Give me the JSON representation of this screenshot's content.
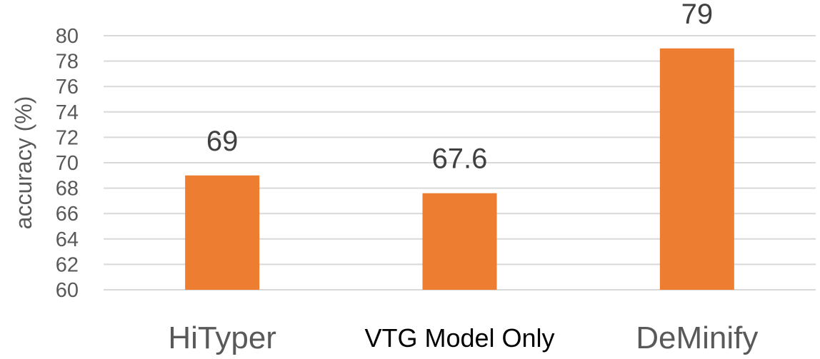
{
  "chart_data": {
    "type": "bar",
    "categories": [
      "HiTyper",
      "VTG Model Only",
      "DeMinify"
    ],
    "values": [
      69,
      67.6,
      79
    ],
    "data_labels": [
      "69",
      "67.6",
      "79"
    ],
    "ylabel": "accuracy (%)",
    "xlabel": "",
    "ylim": [
      60,
      80
    ],
    "yticks": [
      "60",
      "62",
      "64",
      "66",
      "68",
      "70",
      "72",
      "74",
      "76",
      "78",
      "80"
    ],
    "grid": true,
    "bar_color": "#ED7D31",
    "grid_color": "#D9D9D9"
  }
}
